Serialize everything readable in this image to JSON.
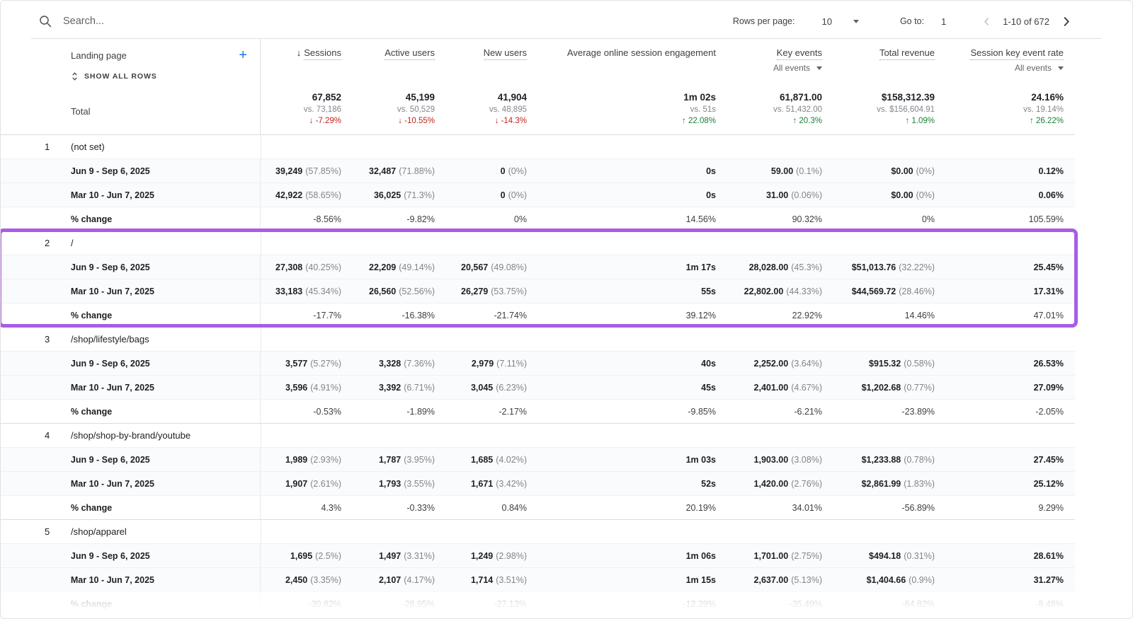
{
  "toolbar": {
    "search_placeholder": "Search...",
    "rows_per_page_label": "Rows per page:",
    "rows_per_page_value": "10",
    "go_to_label": "Go to:",
    "go_to_value": "1",
    "range_text": "1-10 of 672"
  },
  "header": {
    "dimension_label": "Landing page",
    "show_all_rows_label": "SHOW ALL ROWS",
    "columns": [
      {
        "label": "Sessions",
        "sorted": true,
        "dotted": true
      },
      {
        "label": "Active users",
        "sorted": false,
        "dotted": true
      },
      {
        "label": "New users",
        "sorted": false,
        "dotted": true
      },
      {
        "label": "Average online session engagement",
        "sorted": false,
        "dotted": false
      },
      {
        "label": "Key events",
        "sorted": false,
        "dotted": true,
        "sub": "All events"
      },
      {
        "label": "Total revenue",
        "sorted": false,
        "dotted": true
      },
      {
        "label": "Session key event rate",
        "sorted": false,
        "dotted": true,
        "sub": "All events"
      }
    ]
  },
  "totals": {
    "label": "Total",
    "cells": [
      {
        "value": "67,852",
        "vs": "vs. 73,186",
        "delta": "-7.29%",
        "direction": "down"
      },
      {
        "value": "45,199",
        "vs": "vs. 50,529",
        "delta": "-10.55%",
        "direction": "down"
      },
      {
        "value": "41,904",
        "vs": "vs. 48,895",
        "delta": "-14.3%",
        "direction": "down"
      },
      {
        "value": "1m 02s",
        "vs": "vs. 51s",
        "delta": "22.08%",
        "direction": "up"
      },
      {
        "value": "61,871.00",
        "vs": "vs. 51,432.00",
        "delta": "20.3%",
        "direction": "up"
      },
      {
        "value": "$158,312.39",
        "vs": "vs. $156,604.91",
        "delta": "1.09%",
        "direction": "up"
      },
      {
        "value": "24.16%",
        "vs": "vs. 19.14%",
        "delta": "26.22%",
        "direction": "up"
      }
    ]
  },
  "table": {
    "period1_label": "Jun 9 - Sep 6, 2025",
    "period2_label": "Mar 10 - Jun 7, 2025",
    "pct_change_label": "% change",
    "groups": [
      {
        "num": "1",
        "landing_page": "(not set)",
        "highlighted": false,
        "faded": false,
        "period1": [
          [
            "39,249",
            "(57.85%)"
          ],
          [
            "32,487",
            "(71.88%)"
          ],
          [
            "0",
            "(0%)"
          ],
          [
            "0s",
            ""
          ],
          [
            "59.00",
            "(0.1%)"
          ],
          [
            "$0.00",
            "(0%)"
          ],
          [
            "0.12%",
            ""
          ]
        ],
        "period2": [
          [
            "42,922",
            "(58.65%)"
          ],
          [
            "36,025",
            "(71.3%)"
          ],
          [
            "0",
            "(0%)"
          ],
          [
            "0s",
            ""
          ],
          [
            "31.00",
            "(0.06%)"
          ],
          [
            "$0.00",
            "(0%)"
          ],
          [
            "0.06%",
            ""
          ]
        ],
        "pct_change": [
          "-8.56%",
          "-9.82%",
          "0%",
          "14.56%",
          "90.32%",
          "0%",
          "105.59%"
        ]
      },
      {
        "num": "2",
        "landing_page": "/",
        "highlighted": true,
        "faded": false,
        "period1": [
          [
            "27,308",
            "(40.25%)"
          ],
          [
            "22,209",
            "(49.14%)"
          ],
          [
            "20,567",
            "(49.08%)"
          ],
          [
            "1m 17s",
            ""
          ],
          [
            "28,028.00",
            "(45.3%)"
          ],
          [
            "$51,013.76",
            "(32.22%)"
          ],
          [
            "25.45%",
            ""
          ]
        ],
        "period2": [
          [
            "33,183",
            "(45.34%)"
          ],
          [
            "26,560",
            "(52.56%)"
          ],
          [
            "26,279",
            "(53.75%)"
          ],
          [
            "55s",
            ""
          ],
          [
            "22,802.00",
            "(44.33%)"
          ],
          [
            "$44,569.72",
            "(28.46%)"
          ],
          [
            "17.31%",
            ""
          ]
        ],
        "pct_change": [
          "-17.7%",
          "-16.38%",
          "-21.74%",
          "39.12%",
          "22.92%",
          "14.46%",
          "47.01%"
        ]
      },
      {
        "num": "3",
        "landing_page": "/shop/lifestyle/bags",
        "highlighted": false,
        "faded": false,
        "period1": [
          [
            "3,577",
            "(5.27%)"
          ],
          [
            "3,328",
            "(7.36%)"
          ],
          [
            "2,979",
            "(7.11%)"
          ],
          [
            "40s",
            ""
          ],
          [
            "2,252.00",
            "(3.64%)"
          ],
          [
            "$915.32",
            "(0.58%)"
          ],
          [
            "26.53%",
            ""
          ]
        ],
        "period2": [
          [
            "3,596",
            "(4.91%)"
          ],
          [
            "3,392",
            "(6.71%)"
          ],
          [
            "3,045",
            "(6.23%)"
          ],
          [
            "45s",
            ""
          ],
          [
            "2,401.00",
            "(4.67%)"
          ],
          [
            "$1,202.68",
            "(0.77%)"
          ],
          [
            "27.09%",
            ""
          ]
        ],
        "pct_change": [
          "-0.53%",
          "-1.89%",
          "-2.17%",
          "-9.85%",
          "-6.21%",
          "-23.89%",
          "-2.05%"
        ]
      },
      {
        "num": "4",
        "landing_page": "/shop/shop-by-brand/youtube",
        "highlighted": false,
        "faded": false,
        "period1": [
          [
            "1,989",
            "(2.93%)"
          ],
          [
            "1,787",
            "(3.95%)"
          ],
          [
            "1,685",
            "(4.02%)"
          ],
          [
            "1m 03s",
            ""
          ],
          [
            "1,903.00",
            "(3.08%)"
          ],
          [
            "$1,233.88",
            "(0.78%)"
          ],
          [
            "27.45%",
            ""
          ]
        ],
        "period2": [
          [
            "1,907",
            "(2.61%)"
          ],
          [
            "1,793",
            "(3.55%)"
          ],
          [
            "1,671",
            "(3.42%)"
          ],
          [
            "52s",
            ""
          ],
          [
            "1,420.00",
            "(2.76%)"
          ],
          [
            "$2,861.99",
            "(1.83%)"
          ],
          [
            "25.12%",
            ""
          ]
        ],
        "pct_change": [
          "4.3%",
          "-0.33%",
          "0.84%",
          "20.19%",
          "34.01%",
          "-56.89%",
          "9.29%"
        ]
      },
      {
        "num": "5",
        "landing_page": "/shop/apparel",
        "highlighted": false,
        "faded": true,
        "period1": [
          [
            "1,695",
            "(2.5%)"
          ],
          [
            "1,497",
            "(3.31%)"
          ],
          [
            "1,249",
            "(2.98%)"
          ],
          [
            "1m 06s",
            ""
          ],
          [
            "1,701.00",
            "(2.75%)"
          ],
          [
            "$494.18",
            "(0.31%)"
          ],
          [
            "28.61%",
            ""
          ]
        ],
        "period2": [
          [
            "2,450",
            "(3.35%)"
          ],
          [
            "2,107",
            "(4.17%)"
          ],
          [
            "1,714",
            "(3.51%)"
          ],
          [
            "1m 15s",
            ""
          ],
          [
            "2,637.00",
            "(5.13%)"
          ],
          [
            "$1,404.66",
            "(0.9%)"
          ],
          [
            "31.27%",
            ""
          ]
        ],
        "pct_change": [
          "-30.82%",
          "-28.95%",
          "-27.13%",
          "-12.29%",
          "-35.49%",
          "-64.82%",
          "-8.48%"
        ]
      }
    ]
  },
  "colors": {
    "highlight_purple": "#a95ce5",
    "positive_green": "#188038",
    "negative_red": "#c5221f",
    "accent_blue": "#1a73e8"
  }
}
